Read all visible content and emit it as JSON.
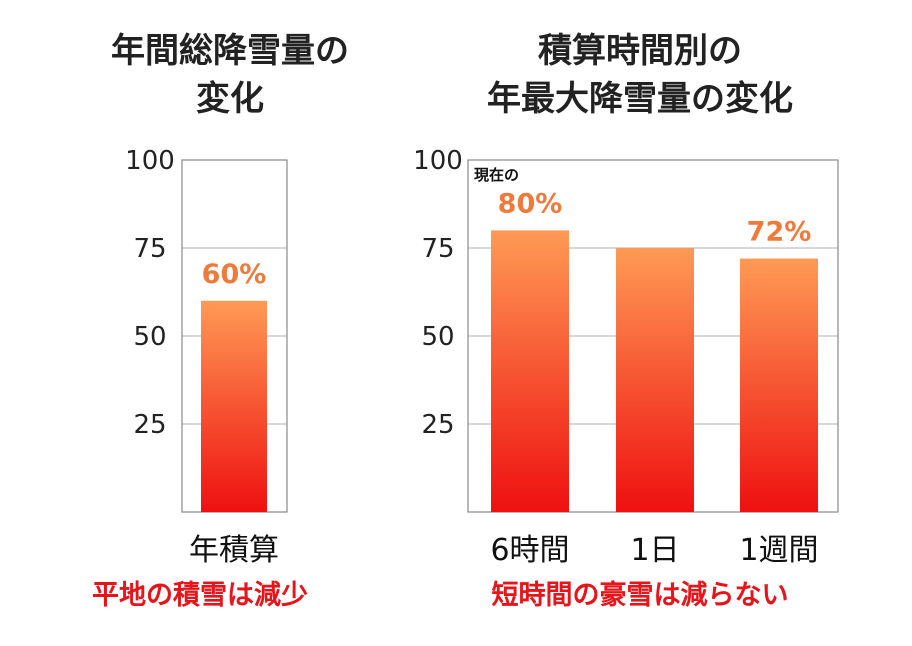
{
  "colors": {
    "bar_top": "#ff9a55",
    "bar_bottom": "#ee1010",
    "data_label": "#f07a3a",
    "caption": "#e8141a"
  },
  "chart_data": [
    {
      "type": "bar",
      "title_lines": [
        "年間総降雪量の",
        "変化"
      ],
      "categories": [
        "年積算"
      ],
      "values": [
        60
      ],
      "data_labels": [
        "60%"
      ],
      "ylim": [
        0,
        100
      ],
      "yticks": [
        25,
        50,
        75,
        100
      ],
      "grid": true,
      "caption": "平地の積雪は減少"
    },
    {
      "type": "bar",
      "title_lines": [
        "積算時間別の",
        "年最大降雪量の変化"
      ],
      "categories": [
        "6時間",
        "1日",
        "1週間"
      ],
      "values": [
        80,
        75,
        72
      ],
      "data_labels": [
        "80%",
        "",
        "72%"
      ],
      "annotation": "現在の",
      "ylim": [
        0,
        100
      ],
      "yticks": [
        25,
        50,
        75,
        100
      ],
      "grid": true,
      "caption": "短時間の豪雪は減らない"
    }
  ]
}
